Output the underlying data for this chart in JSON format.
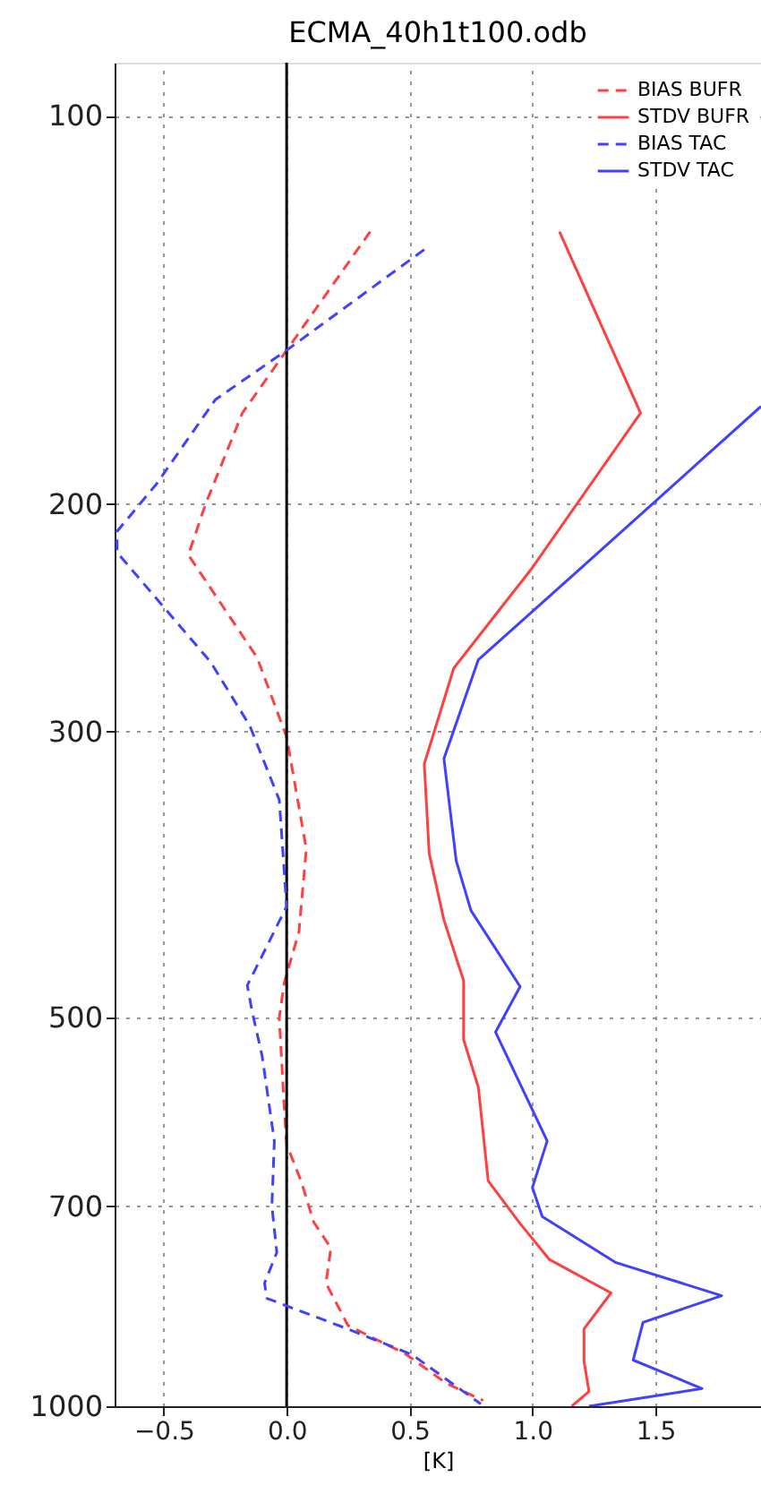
{
  "chart_data": {
    "type": "line",
    "title": "ECMA_40h1t100.odb",
    "xlabel": "[K]",
    "xlim": [
      -0.7,
      1.93
    ],
    "ylim": [
      1000,
      91
    ],
    "log": "y",
    "xticks": [
      {
        "value": -0.5,
        "label": "−0.5"
      },
      {
        "value": 0,
        "label": "0.0"
      },
      0.5,
      {
        "value": 1,
        "label": "1.0"
      },
      1.5
    ],
    "yticks": [
      100,
      200,
      300,
      500,
      700,
      1000
    ],
    "grid": true,
    "legend": "top right",
    "marker": "none",
    "ref_lines": [
      {
        "axis": "x",
        "value": 0,
        "color": "#000000"
      }
    ],
    "series": [
      {
        "name": "BIAS BUFR",
        "color": "#ff4040",
        "line_style": "dashed",
        "x": [
          0.34,
          0.0,
          -0.18,
          -0.33,
          -0.4,
          -0.12,
          0.0,
          0.08,
          0.05,
          -0.01,
          -0.03,
          -0.01,
          0.0,
          0.06,
          0.11,
          0.18,
          0.16,
          0.25,
          0.48,
          0.65,
          0.8
        ],
        "values": [
          123,
          152,
          170,
          200,
          219,
          263,
          303,
          370,
          429,
          470,
          500,
          586,
          627,
          670,
          720,
          754,
          803,
          866,
          910,
          960,
          990
        ]
      },
      {
        "name": "STDV BUFR",
        "color": "#ff4040",
        "line_style": "solid",
        "x": [
          1.11,
          1.44,
          1.0,
          0.68,
          0.56,
          0.58,
          0.64,
          0.72,
          0.72,
          0.78,
          0.82,
          0.95,
          1.07,
          1.32,
          1.21,
          1.21,
          1.23,
          1.16
        ],
        "values": [
          123,
          170,
          224,
          268,
          318,
          373,
          420,
          468,
          520,
          566,
          669,
          722,
          770,
          817,
          871,
          923,
          974,
          1000
        ]
      },
      {
        "name": "BIAS TAC",
        "color": "#4040ff",
        "line_style": "dashed",
        "x": [
          0.56,
          0.0,
          -0.29,
          -0.53,
          -0.69,
          -0.69,
          -0.31,
          -0.15,
          -0.03,
          0.0,
          -0.16,
          -0.14,
          -0.1,
          -0.05,
          -0.06,
          -0.04,
          -0.09,
          -0.08,
          0.24,
          0.51,
          0.79
        ],
        "values": [
          127,
          152,
          166,
          193,
          210,
          218,
          265,
          297,
          339,
          410,
          472,
          495,
          535,
          623,
          700,
          760,
          803,
          825,
          870,
          912,
          996
        ]
      },
      {
        "name": "STDV TAC",
        "color": "#4040ff",
        "line_style": "solid",
        "x": [
          1.93,
          1.2,
          0.78,
          0.64,
          0.69,
          0.75,
          0.95,
          0.85,
          1.06,
          1.0,
          1.04,
          1.34,
          1.77,
          1.45,
          1.41,
          1.69,
          1.23
        ],
        "values": [
          168,
          224,
          264,
          315,
          378,
          413,
          473,
          513,
          623,
          677,
          713,
          774,
          821,
          861,
          921,
          969,
          1000
        ]
      }
    ]
  }
}
